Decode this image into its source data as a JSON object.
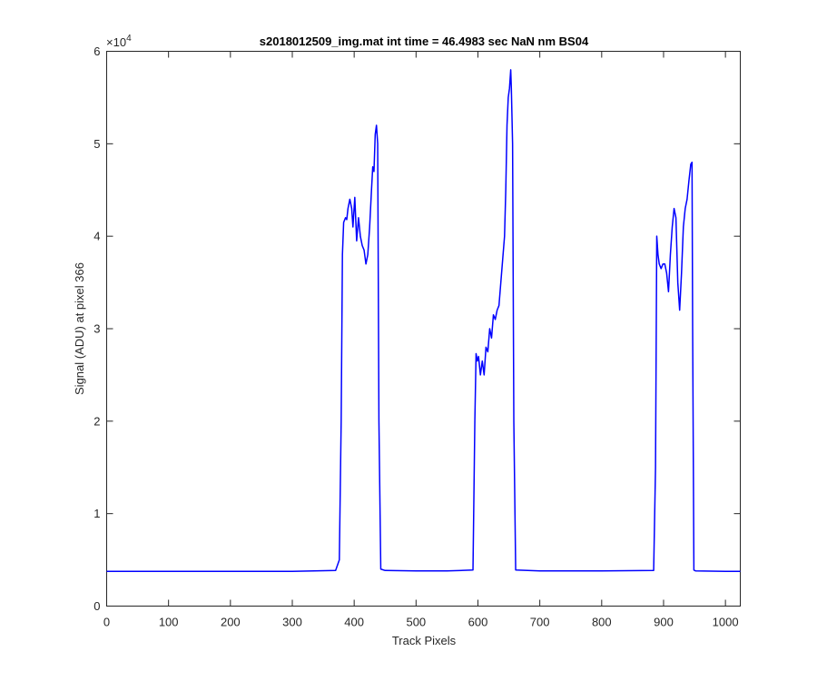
{
  "chart_data": {
    "type": "line",
    "title": "s2018012509_img.mat int time = 46.4983 sec  NaN nm BS04",
    "xlabel": "Track Pixels",
    "ylabel": "Signal (ADU) at pixel 366",
    "xlim": [
      0,
      1024
    ],
    "ylim": [
      0,
      60000
    ],
    "x_ticks": [
      0,
      100,
      200,
      300,
      400,
      500,
      600,
      700,
      800,
      900,
      1000
    ],
    "y_ticks": [
      0,
      1,
      2,
      3,
      4,
      5,
      6
    ],
    "y_tick_labels": [
      "0",
      "1",
      "2",
      "3",
      "4",
      "5",
      "6"
    ],
    "y_exponent_label": "×10",
    "y_exponent_power": "4",
    "grid": false,
    "series": [
      {
        "color": "#0000ff",
        "x": [
          0,
          100,
          200,
          300,
          370,
          376,
          379,
          381,
          383,
          386,
          388,
          390,
          393,
          396,
          398,
          401,
          404,
          407,
          410,
          413,
          416,
          419,
          422,
          425,
          428,
          430,
          432,
          434,
          436,
          438,
          440,
          443,
          450,
          500,
          550,
          592,
          595,
          597,
          599,
          601,
          604,
          607,
          610,
          613,
          616,
          619,
          622,
          625,
          628,
          631,
          634,
          637,
          640,
          643,
          645,
          647,
          649,
          651,
          653,
          654,
          656,
          658,
          661,
          700,
          800,
          884,
          887,
          889,
          891,
          893,
          896,
          899,
          902,
          905,
          908,
          911,
          914,
          917,
          920,
          923,
          926,
          929,
          932,
          935,
          938,
          941,
          944,
          946,
          947,
          949,
          952,
          1000,
          1024
        ],
        "y": [
          3750,
          3760,
          3750,
          3760,
          3850,
          5000,
          20000,
          38000,
          41500,
          42000,
          41800,
          43000,
          44000,
          43000,
          41000,
          44200,
          39500,
          42000,
          40000,
          39000,
          38500,
          37000,
          38000,
          41000,
          45000,
          47500,
          47000,
          51000,
          52000,
          50000,
          20000,
          4000,
          3850,
          3800,
          3800,
          3900,
          20000,
          27300,
          26500,
          27000,
          25000,
          26500,
          25000,
          28000,
          27500,
          30000,
          29000,
          31500,
          31000,
          32000,
          32500,
          35000,
          37500,
          40000,
          45000,
          52000,
          55000,
          56000,
          58000,
          56000,
          50000,
          20000,
          3900,
          3800,
          3800,
          3850,
          15000,
          40000,
          38000,
          37000,
          36500,
          37000,
          37000,
          36000,
          34000,
          38000,
          41000,
          43000,
          42000,
          35000,
          32000,
          36000,
          41000,
          43000,
          44000,
          46000,
          47800,
          48000,
          30000,
          3900,
          3800,
          3750,
          3750
        ]
      }
    ]
  }
}
